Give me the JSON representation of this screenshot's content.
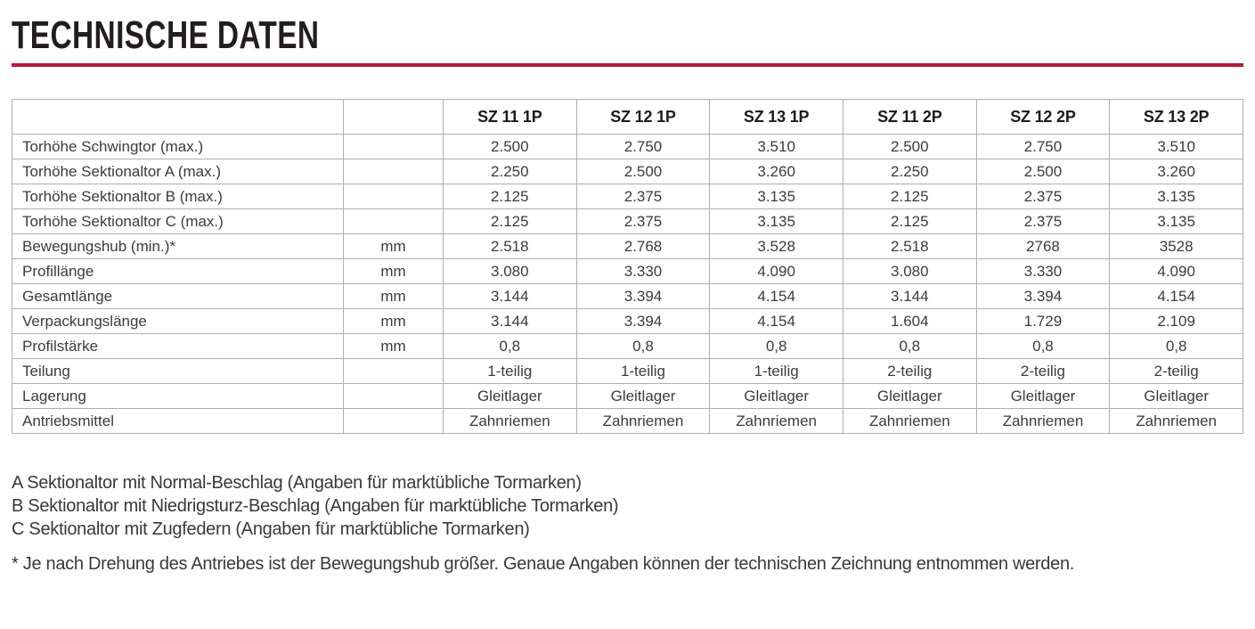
{
  "header": {
    "title": "TECHNISCHE DATEN",
    "accent_color": "#b11b36"
  },
  "table": {
    "columns": [
      "SZ 11 1P",
      "SZ 12 1P",
      "SZ 13 1P",
      "SZ 11 2P",
      "SZ 12 2P",
      "SZ 13 2P"
    ],
    "rows": [
      {
        "label": "Torhöhe Schwingtor (max.)",
        "unit": "",
        "values": [
          "2.500",
          "2.750",
          "3.510",
          "2.500",
          "2.750",
          "3.510"
        ]
      },
      {
        "label": "Torhöhe Sektionaltor A (max.)",
        "unit": "",
        "values": [
          "2.250",
          "2.500",
          "3.260",
          "2.250",
          "2.500",
          "3.260"
        ]
      },
      {
        "label": "Torhöhe Sektionaltor B (max.)",
        "unit": "",
        "values": [
          "2.125",
          "2.375",
          "3.135",
          "2.125",
          "2.375",
          "3.135"
        ]
      },
      {
        "label": "Torhöhe Sektionaltor C (max.)",
        "unit": "",
        "values": [
          "2.125",
          "2.375",
          "3.135",
          "2.125",
          "2.375",
          "3.135"
        ]
      },
      {
        "label": "Bewegungshub (min.)*",
        "unit": "mm",
        "values": [
          "2.518",
          "2.768",
          "3.528",
          "2.518",
          "2768",
          "3528"
        ]
      },
      {
        "label": "Profillänge",
        "unit": "mm",
        "values": [
          "3.080",
          "3.330",
          "4.090",
          "3.080",
          "3.330",
          "4.090"
        ]
      },
      {
        "label": "Gesamtlänge",
        "unit": "mm",
        "values": [
          "3.144",
          "3.394",
          "4.154",
          "3.144",
          "3.394",
          "4.154"
        ]
      },
      {
        "label": "Verpackungslänge",
        "unit": "mm",
        "values": [
          "3.144",
          "3.394",
          "4.154",
          "1.604",
          "1.729",
          "2.109"
        ]
      },
      {
        "label": "Profilstärke",
        "unit": "mm",
        "values": [
          "0,8",
          "0,8",
          "0,8",
          "0,8",
          "0,8",
          "0,8"
        ]
      },
      {
        "label": "Teilung",
        "unit": "",
        "values": [
          "1-teilig",
          "1-teilig",
          "1-teilig",
          "2-teilig",
          "2-teilig",
          "2-teilig"
        ]
      },
      {
        "label": "Lagerung",
        "unit": "",
        "values": [
          "Gleitlager",
          "Gleitlager",
          "Gleitlager",
          "Gleitlager",
          "Gleitlager",
          "Gleitlager"
        ]
      },
      {
        "label": "Antriebsmittel",
        "unit": "",
        "values": [
          "Zahnriemen",
          "Zahnriemen",
          "Zahnriemen",
          "Zahnriemen",
          "Zahnriemen",
          "Zahnriemen"
        ]
      }
    ]
  },
  "notes": {
    "lines": [
      "A Sektionaltor mit Normal-Beschlag (Angaben für marktübliche Tormarken)",
      "B Sektionaltor mit Niedrigsturz-Beschlag (Angaben für marktübliche Tormarken)",
      "C Sektionaltor mit Zugfedern (Angaben für marktübliche Tormarken)"
    ],
    "asterisk": "* Je nach Drehung des Antriebes ist der Bewegungshub größer. Genaue Angaben können der technischen Zeichnung entnommen werden."
  }
}
